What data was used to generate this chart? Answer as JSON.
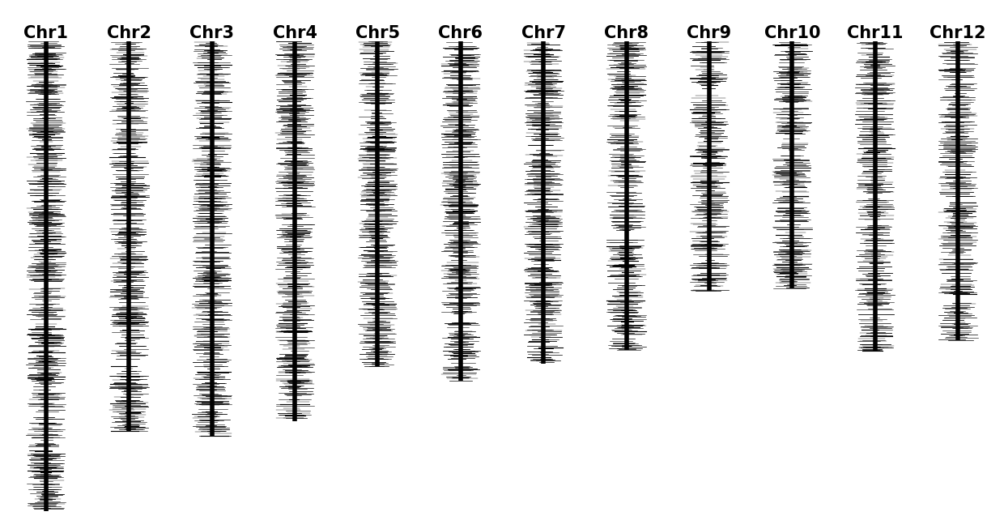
{
  "chromosomes": [
    "Chr1",
    "Chr2",
    "Chr3",
    "Chr4",
    "Chr5",
    "Chr6",
    "Chr7",
    "Chr8",
    "Chr9",
    "Chr10",
    "Chr11",
    "Chr12"
  ],
  "chr_lengths": [
    43.27,
    35.93,
    36.38,
    34.98,
    29.96,
    31.25,
    29.7,
    28.44,
    23.01,
    22.78,
    28.54,
    27.53
  ],
  "snp_counts": [
    550,
    420,
    440,
    430,
    380,
    380,
    360,
    320,
    250,
    260,
    290,
    280
  ],
  "background_color": "#ffffff",
  "bar_color": "#000000",
  "tick_color": "#000000",
  "title_fontsize": 15,
  "label_fontweight": "bold"
}
